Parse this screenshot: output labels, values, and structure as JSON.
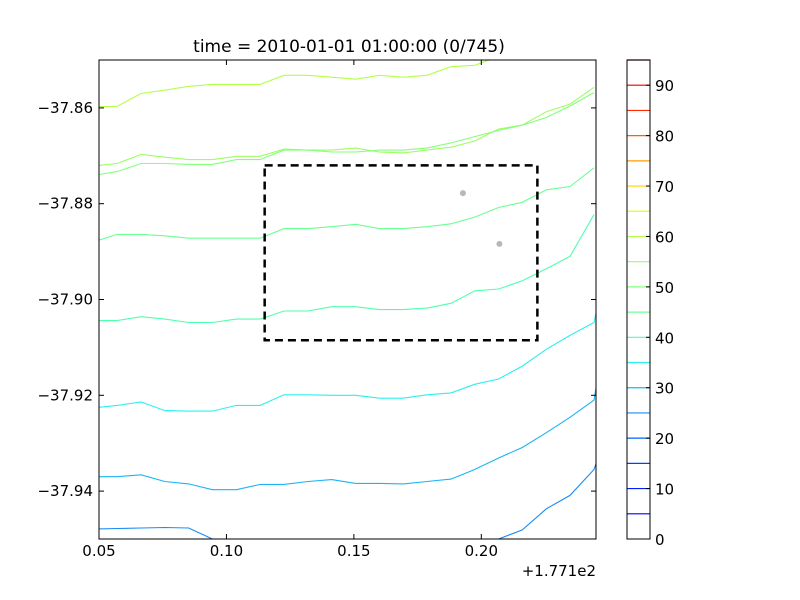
{
  "chart_data": {
    "type": "contour",
    "title": "time = 2010-01-01 01:00:00 (0/745)",
    "x_offset_label": "+1.771e2",
    "xlim": [
      0.05,
      0.245
    ],
    "ylim": [
      -37.95,
      -37.85
    ],
    "x_ticks": [
      {
        "value": 0.05,
        "label": "0.05"
      },
      {
        "value": 0.1,
        "label": "0.10"
      },
      {
        "value": 0.15,
        "label": "0.15"
      },
      {
        "value": 0.2,
        "label": "0.20"
      }
    ],
    "y_ticks": [
      {
        "value": -37.86,
        "label": "−37.86"
      },
      {
        "value": -37.88,
        "label": "−37.88"
      },
      {
        "value": -37.9,
        "label": "−37.90"
      },
      {
        "value": -37.92,
        "label": "−37.92"
      },
      {
        "value": -37.94,
        "label": "−37.94"
      }
    ],
    "contours": [
      {
        "level": 60,
        "color": "#b4ff4a",
        "points": [
          [
            0.05,
            -37.8597
          ],
          [
            0.057,
            -37.8597
          ],
          [
            0.0665,
            -37.857
          ],
          [
            0.0758,
            -37.8563
          ],
          [
            0.0852,
            -37.8555
          ],
          [
            0.0945,
            -37.8551
          ],
          [
            0.1039,
            -37.8551
          ],
          [
            0.1132,
            -37.8551
          ],
          [
            0.1226,
            -37.8532
          ],
          [
            0.132,
            -37.8532
          ],
          [
            0.1413,
            -37.8536
          ],
          [
            0.1507,
            -37.854
          ],
          [
            0.16,
            -37.8532
          ],
          [
            0.1694,
            -37.8536
          ],
          [
            0.1787,
            -37.8532
          ],
          [
            0.1881,
            -37.8514
          ],
          [
            0.1974,
            -37.8511
          ],
          [
            0.2031,
            -37.85
          ]
        ]
      },
      {
        "level": 55,
        "color": "#9cff62",
        "points": [
          [
            0.05,
            -37.872
          ],
          [
            0.0571,
            -37.8716
          ],
          [
            0.0665,
            -37.8697
          ],
          [
            0.0758,
            -37.8703
          ],
          [
            0.0852,
            -37.8708
          ],
          [
            0.0945,
            -37.8708
          ],
          [
            0.1039,
            -37.8701
          ],
          [
            0.1132,
            -37.8701
          ],
          [
            0.1226,
            -37.8686
          ],
          [
            0.132,
            -37.8688
          ],
          [
            0.1413,
            -37.8688
          ],
          [
            0.1507,
            -37.8684
          ],
          [
            0.16,
            -37.8692
          ],
          [
            0.1694,
            -37.8694
          ],
          [
            0.1787,
            -37.8688
          ],
          [
            0.1881,
            -37.8682
          ],
          [
            0.1974,
            -37.8669
          ],
          [
            0.2068,
            -37.8644
          ],
          [
            0.2161,
            -37.8636
          ],
          [
            0.2255,
            -37.8608
          ],
          [
            0.2348,
            -37.8592
          ],
          [
            0.2442,
            -37.8557
          ]
        ]
      },
      {
        "level": 50,
        "color": "#84ff7a",
        "points": [
          [
            0.05,
            -37.8739
          ],
          [
            0.0571,
            -37.8733
          ],
          [
            0.0665,
            -37.8716
          ],
          [
            0.0758,
            -37.8716
          ],
          [
            0.0852,
            -37.8718
          ],
          [
            0.0945,
            -37.8718
          ],
          [
            0.1039,
            -37.8708
          ],
          [
            0.1132,
            -37.8708
          ],
          [
            0.1226,
            -37.8688
          ],
          [
            0.132,
            -37.8688
          ],
          [
            0.1413,
            -37.8692
          ],
          [
            0.1507,
            -37.8692
          ],
          [
            0.16,
            -37.8688
          ],
          [
            0.1694,
            -37.8688
          ],
          [
            0.1787,
            -37.8684
          ],
          [
            0.1881,
            -37.8673
          ],
          [
            0.1974,
            -37.866
          ],
          [
            0.2068,
            -37.8647
          ],
          [
            0.2161,
            -37.8636
          ],
          [
            0.2255,
            -37.862
          ],
          [
            0.2348,
            -37.8596
          ],
          [
            0.2442,
            -37.8568
          ]
        ]
      },
      {
        "level": 45,
        "color": "#6cff92",
        "points": [
          [
            0.05,
            -37.8876
          ],
          [
            0.0571,
            -37.8864
          ],
          [
            0.0665,
            -37.8864
          ],
          [
            0.0758,
            -37.8867
          ],
          [
            0.0852,
            -37.8872
          ],
          [
            0.0945,
            -37.8872
          ],
          [
            0.1039,
            -37.8872
          ],
          [
            0.1132,
            -37.8872
          ],
          [
            0.1226,
            -37.8852
          ],
          [
            0.132,
            -37.8852
          ],
          [
            0.1413,
            -37.8848
          ],
          [
            0.1507,
            -37.8843
          ],
          [
            0.16,
            -37.8852
          ],
          [
            0.1694,
            -37.8852
          ],
          [
            0.1787,
            -37.8848
          ],
          [
            0.1881,
            -37.8842
          ],
          [
            0.1974,
            -37.8828
          ],
          [
            0.2068,
            -37.8808
          ],
          [
            0.2161,
            -37.8797
          ],
          [
            0.2255,
            -37.8771
          ],
          [
            0.2348,
            -37.8764
          ],
          [
            0.2442,
            -37.8725
          ]
        ]
      },
      {
        "level": 40,
        "color": "#50ffae",
        "points": [
          [
            0.05,
            -37.9044
          ],
          [
            0.0571,
            -37.9044
          ],
          [
            0.0665,
            -37.9036
          ],
          [
            0.0758,
            -37.9041
          ],
          [
            0.0852,
            -37.9048
          ],
          [
            0.0945,
            -37.9048
          ],
          [
            0.1039,
            -37.9041
          ],
          [
            0.1132,
            -37.9041
          ],
          [
            0.1226,
            -37.9024
          ],
          [
            0.132,
            -37.9024
          ],
          [
            0.1413,
            -37.9015
          ],
          [
            0.1507,
            -37.9015
          ],
          [
            0.16,
            -37.9021
          ],
          [
            0.1694,
            -37.9021
          ],
          [
            0.1787,
            -37.9018
          ],
          [
            0.1881,
            -37.9008
          ],
          [
            0.1974,
            -37.8982
          ],
          [
            0.2068,
            -37.8978
          ],
          [
            0.2161,
            -37.8961
          ],
          [
            0.2255,
            -37.8936
          ],
          [
            0.2348,
            -37.891
          ],
          [
            0.2442,
            -37.8823
          ]
        ]
      },
      {
        "level": 35,
        "color": "#2cf0ee",
        "points": [
          [
            0.05,
            -37.9225
          ],
          [
            0.0571,
            -37.9221
          ],
          [
            0.0665,
            -37.9214
          ],
          [
            0.0758,
            -37.9232
          ],
          [
            0.0852,
            -37.9233
          ],
          [
            0.0945,
            -37.9233
          ],
          [
            0.1039,
            -37.9221
          ],
          [
            0.1132,
            -37.9221
          ],
          [
            0.1226,
            -37.9199
          ],
          [
            0.132,
            -37.9199
          ],
          [
            0.1413,
            -37.92
          ],
          [
            0.1507,
            -37.92
          ],
          [
            0.16,
            -37.9206
          ],
          [
            0.1694,
            -37.9206
          ],
          [
            0.1787,
            -37.9199
          ],
          [
            0.1881,
            -37.9195
          ],
          [
            0.1974,
            -37.9177
          ],
          [
            0.2068,
            -37.9166
          ],
          [
            0.2161,
            -37.9139
          ],
          [
            0.2255,
            -37.9104
          ],
          [
            0.2348,
            -37.9075
          ],
          [
            0.2442,
            -37.9048
          ],
          [
            0.2461,
            -37.9
          ]
        ]
      },
      {
        "level": 30,
        "color": "#1ab4f4",
        "points": [
          [
            0.05,
            -37.937
          ],
          [
            0.0571,
            -37.937
          ],
          [
            0.0665,
            -37.9366
          ],
          [
            0.0758,
            -37.938
          ],
          [
            0.0852,
            -37.9385
          ],
          [
            0.0945,
            -37.9397
          ],
          [
            0.1039,
            -37.9397
          ],
          [
            0.1132,
            -37.9386
          ],
          [
            0.1226,
            -37.9386
          ],
          [
            0.132,
            -37.938
          ],
          [
            0.1413,
            -37.9376
          ],
          [
            0.1507,
            -37.9384
          ],
          [
            0.16,
            -37.9384
          ],
          [
            0.1694,
            -37.9385
          ],
          [
            0.1787,
            -37.938
          ],
          [
            0.1881,
            -37.9375
          ],
          [
            0.1974,
            -37.9355
          ],
          [
            0.2068,
            -37.9331
          ],
          [
            0.2161,
            -37.9309
          ],
          [
            0.2255,
            -37.9278
          ],
          [
            0.2348,
            -37.9246
          ],
          [
            0.2442,
            -37.921
          ],
          [
            0.2461,
            -37.915
          ]
        ]
      },
      {
        "level": 25,
        "color": "#1a8cf4",
        "points": [
          [
            0.05,
            -37.9479
          ],
          [
            0.0571,
            -37.9478
          ],
          [
            0.0665,
            -37.9477
          ],
          [
            0.0758,
            -37.9476
          ],
          [
            0.0852,
            -37.9477
          ],
          [
            0.0945,
            -37.95
          ],
          [
            0.2068,
            -37.95
          ],
          [
            0.2161,
            -37.9481
          ],
          [
            0.2255,
            -37.9437
          ],
          [
            0.2348,
            -37.9409
          ],
          [
            0.2442,
            -37.9355
          ],
          [
            0.2461,
            -37.9325
          ]
        ]
      }
    ],
    "box": {
      "x": [
        0.115,
        0.222
      ],
      "y": [
        -37.9085,
        -37.872
      ],
      "color": "#000000",
      "style": "dashed"
    },
    "points": [
      {
        "x": 0.1928,
        "y": -37.8778,
        "color": "#b8b8b8"
      },
      {
        "x": 0.2071,
        "y": -37.8884,
        "color": "#b8b8b8"
      }
    ],
    "colorbar": {
      "min": 0,
      "max": 95,
      "tick_labels": [
        "0",
        "10",
        "20",
        "30",
        "40",
        "50",
        "60",
        "70",
        "80",
        "90"
      ],
      "tick_values": [
        0,
        10,
        20,
        30,
        40,
        50,
        60,
        70,
        80,
        90
      ],
      "levels": [
        {
          "value": 5,
          "color": "#0000ff"
        },
        {
          "value": 10,
          "color": "#0020ff"
        },
        {
          "value": 15,
          "color": "#0040ff"
        },
        {
          "value": 20,
          "color": "#0060ff"
        },
        {
          "value": 25,
          "color": "#1a8cf4"
        },
        {
          "value": 30,
          "color": "#1ab4f4"
        },
        {
          "value": 35,
          "color": "#2cf0ee"
        },
        {
          "value": 40,
          "color": "#50ffae"
        },
        {
          "value": 45,
          "color": "#6cff92"
        },
        {
          "value": 50,
          "color": "#84ff7a"
        },
        {
          "value": 55,
          "color": "#9cff62"
        },
        {
          "value": 60,
          "color": "#b4ff4a"
        },
        {
          "value": 65,
          "color": "#e0ff16"
        },
        {
          "value": 70,
          "color": "#ffd000"
        },
        {
          "value": 75,
          "color": "#ff9c00"
        },
        {
          "value": 80,
          "color": "#ff6000"
        },
        {
          "value": 85,
          "color": "#ff2a00"
        },
        {
          "value": 90,
          "color": "#e60000"
        },
        {
          "value": 95,
          "color": "#800000"
        }
      ]
    }
  }
}
